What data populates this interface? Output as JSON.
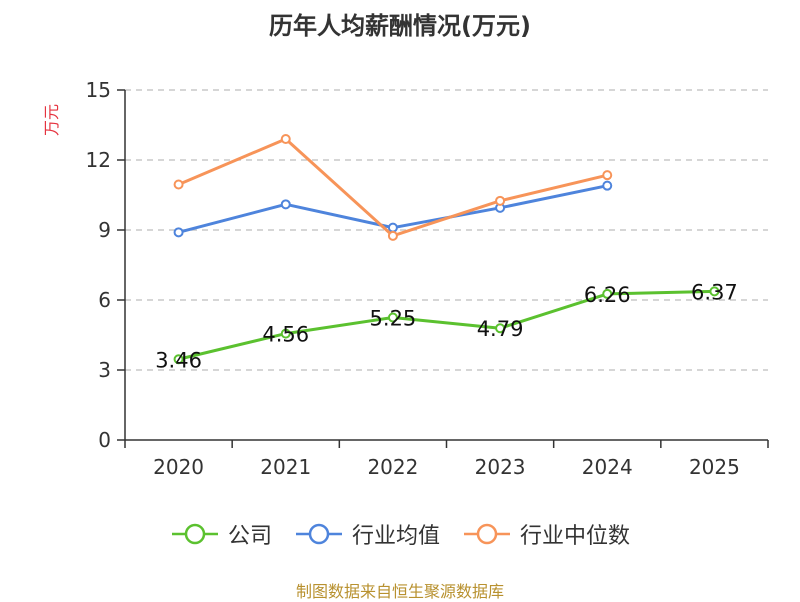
{
  "chart_data": {
    "type": "line",
    "title": "历年人均薪酬情况(万元)",
    "ylabel": "万元",
    "xlabel": "",
    "categories": [
      "2020",
      "2021",
      "2022",
      "2023",
      "2024",
      "2025"
    ],
    "y_ticks": [
      "0",
      "3",
      "6",
      "9",
      "12",
      "15"
    ],
    "ylim": [
      0,
      15
    ],
    "grid": "horizontal dashed",
    "legend_position": "bottom",
    "series": [
      {
        "name": "公司",
        "color": "#5bc12f",
        "values": [
          3.46,
          4.56,
          5.25,
          4.79,
          6.26,
          6.37
        ],
        "labels": [
          "3.46",
          "4.56",
          "5.25",
          "4.79",
          "6.26",
          "6.37"
        ]
      },
      {
        "name": "行业均值",
        "color": "#4e84dc",
        "values": [
          8.9,
          10.1,
          9.1,
          9.95,
          10.9,
          null
        ]
      },
      {
        "name": "行业中位数",
        "color": "#f79459",
        "values": [
          10.95,
          12.9,
          8.75,
          10.25,
          11.35,
          null
        ]
      }
    ]
  },
  "footer": {
    "source": "制图数据来自恒生聚源数据库"
  }
}
